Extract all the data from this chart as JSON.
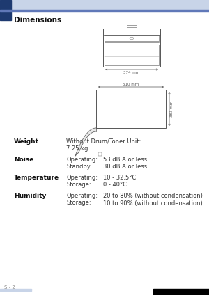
{
  "bg_color": "#ffffff",
  "header_light": "#c8d4e8",
  "header_dark": "#1e3a70",
  "header_line": "#6078b8",
  "footer_light": "#c8d4e8",
  "page_label": "S - 2",
  "section_title": "Dimensions",
  "diagram_color": "#555555",
  "specs": [
    {
      "label": "Weight",
      "entries": [
        {
          "sub": "Without Drum/Toner Unit:",
          "val": ""
        },
        {
          "sub": "7.25 kg",
          "val": ""
        }
      ]
    },
    {
      "label": "Noise",
      "entries": [
        {
          "sub": "Operating:",
          "val": "53 dB A or less"
        },
        {
          "sub": "Standby:",
          "val": "30 dB A or less"
        }
      ]
    },
    {
      "label": "Temperature",
      "entries": [
        {
          "sub": "Operating:",
          "val": "10 - 32.5°C"
        },
        {
          "sub": "Storage:",
          "val": "0 - 40°C"
        }
      ]
    },
    {
      "label": "Humidity",
      "entries": [
        {
          "sub": "Operating:",
          "val": "20 to 80% (without condensation)"
        },
        {
          "sub": "Storage:",
          "val": "10 to 90% (without condensation)"
        }
      ]
    }
  ],
  "text_color": "#333333",
  "label_color": "#111111",
  "dim374": "374 mm",
  "dim510": "510 mm",
  "dim363": "363 mm"
}
